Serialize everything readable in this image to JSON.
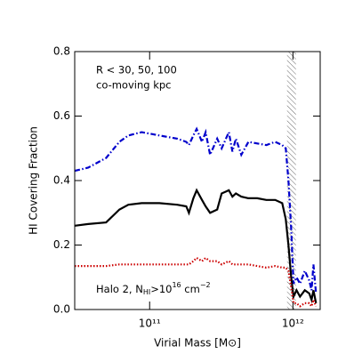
{
  "chart_data": {
    "type": "line",
    "xlabel": "Virial Mass [M⊙]",
    "ylabel": "HI Covering Fraction",
    "annotations": [
      "R < 30, 50, 100",
      "co-moving kpc"
    ],
    "annotation_note": {
      "parts": [
        "Halo 2, N",
        "HI",
        ">10",
        "16",
        " cm",
        "−2"
      ]
    },
    "x": [
      30000000000.0,
      37200000000.0,
      49700000000.0,
      61500000000.0,
      71000000000.0,
      88000000000.0,
      117000000000.0,
      156000000000.0,
      180000000000.0,
      188000000000.0,
      202000000000.0,
      213000000000.0,
      232000000000.0,
      246000000000.0,
      264000000000.0,
      296000000000.0,
      318000000000.0,
      357000000000.0,
      378000000000.0,
      400000000000.0,
      436000000000.0,
      489000000000.0,
      564000000000.0,
      652000000000.0,
      752000000000.0,
      842000000000.0,
      891000000000.0,
      931000000000.0,
      972000000000.0,
      1010000000000.0,
      1060000000000.0,
      1120000000000.0,
      1210000000000.0,
      1300000000000.0,
      1350000000000.0,
      1390000000000.0,
      1450000000000.0
    ],
    "series": [
      {
        "color": "#0000cc",
        "style": "dashdot",
        "values": [
          0.43,
          0.44,
          0.47,
          0.52,
          0.54,
          0.55,
          0.54,
          0.53,
          0.52,
          0.51,
          0.54,
          0.56,
          0.52,
          0.55,
          0.48,
          0.53,
          0.5,
          0.55,
          0.49,
          0.53,
          0.48,
          0.52,
          0.515,
          0.51,
          0.52,
          0.51,
          0.5,
          0.4,
          0.25,
          0.08,
          0.1,
          0.08,
          0.12,
          0.09,
          0.06,
          0.14,
          0.05
        ]
      },
      {
        "color": "#000000",
        "style": "solid",
        "values": [
          0.26,
          0.265,
          0.27,
          0.31,
          0.325,
          0.33,
          0.33,
          0.325,
          0.32,
          0.3,
          0.345,
          0.37,
          0.34,
          0.32,
          0.3,
          0.31,
          0.36,
          0.37,
          0.35,
          0.36,
          0.35,
          0.345,
          0.345,
          0.34,
          0.34,
          0.33,
          0.28,
          0.2,
          0.1,
          0.04,
          0.06,
          0.04,
          0.06,
          0.05,
          0.03,
          0.06,
          0.02
        ]
      },
      {
        "color": "#cc0000",
        "style": "dotted",
        "values": [
          0.135,
          0.135,
          0.135,
          0.14,
          0.14,
          0.14,
          0.14,
          0.14,
          0.14,
          0.14,
          0.15,
          0.16,
          0.15,
          0.16,
          0.15,
          0.15,
          0.14,
          0.15,
          0.14,
          0.14,
          0.14,
          0.14,
          0.135,
          0.13,
          0.135,
          0.13,
          0.13,
          0.12,
          0.07,
          0.02,
          0.02,
          0.01,
          0.02,
          0.02,
          0.01,
          0.03,
          0.01
        ]
      }
    ],
    "xscale": "log",
    "xlim": [
      30000000000.0,
      1550000000000.0
    ],
    "xticks": [
      {
        "value": 100000000000.0,
        "label": "10¹¹"
      },
      {
        "value": 1000000000000.0,
        "label": "10¹²"
      }
    ],
    "ylim": [
      0,
      0.8
    ],
    "yticks": [
      {
        "value": 0,
        "label": "0.0"
      },
      0.2,
      0.4,
      0.6,
      0.8
    ],
    "shaded_region": [
      910000000000.0,
      1050000000000.0
    ]
  }
}
